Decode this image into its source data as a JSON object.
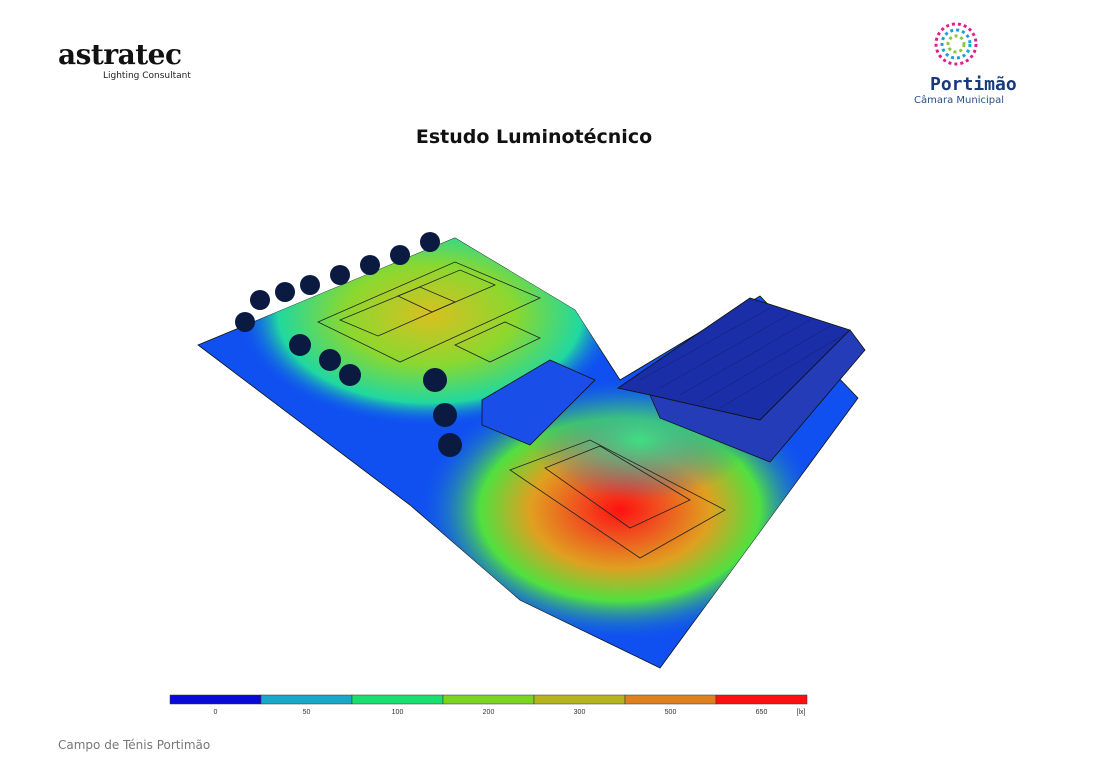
{
  "header": {
    "brand": "astratec",
    "brand_subtitle": "Lighting Consultant",
    "client": "Portimão",
    "client_subtitle": "Câmara Municipal"
  },
  "title": "Estudo Luminotécnico",
  "legend": {
    "unit": "[lx]",
    "segments": [
      {
        "label": "0",
        "color": "#0a0ad8"
      },
      {
        "label": "50",
        "color": "#18a8c8"
      },
      {
        "label": "100",
        "color": "#18e070"
      },
      {
        "label": "200",
        "color": "#7ad420"
      },
      {
        "label": "300",
        "color": "#b4b41c"
      },
      {
        "label": "500",
        "color": "#e0801c"
      },
      {
        "label": "650",
        "color": "#ff1010"
      }
    ]
  },
  "footer": "Campo de Ténis Portimão"
}
